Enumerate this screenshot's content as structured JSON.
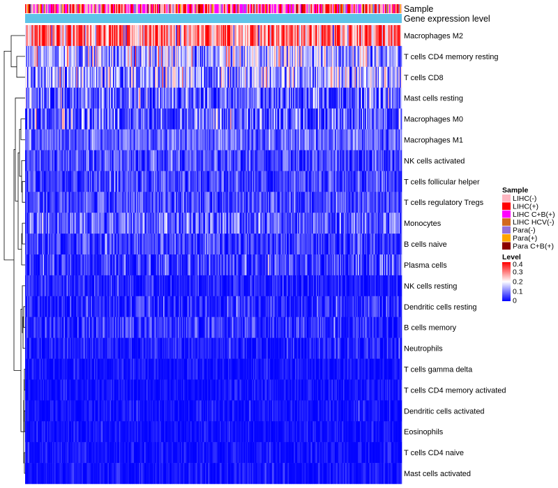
{
  "chart_data": {
    "type": "heatmap",
    "title": "",
    "annotations": [
      {
        "name": "Sample"
      },
      {
        "name": "Gene expression level"
      }
    ],
    "rows": [
      {
        "label": "Macrophages M2",
        "mean": 0.3,
        "sd": 0.09
      },
      {
        "label": "T cells CD4 memory resting",
        "mean": 0.14,
        "sd": 0.08
      },
      {
        "label": "T cells CD8",
        "mean": 0.13,
        "sd": 0.09
      },
      {
        "label": "Mast cells resting",
        "mean": 0.07,
        "sd": 0.07
      },
      {
        "label": "Macrophages M0",
        "mean": 0.06,
        "sd": 0.08
      },
      {
        "label": "Macrophages M1",
        "mean": 0.08,
        "sd": 0.04
      },
      {
        "label": "NK cells activated",
        "mean": 0.05,
        "sd": 0.04
      },
      {
        "label": "T cells follicular helper",
        "mean": 0.05,
        "sd": 0.04
      },
      {
        "label": "T cells regulatory  Tregs",
        "mean": 0.05,
        "sd": 0.04
      },
      {
        "label": "Monocytes",
        "mean": 0.07,
        "sd": 0.05
      },
      {
        "label": "B cells naive",
        "mean": 0.04,
        "sd": 0.04
      },
      {
        "label": "Plasma cells",
        "mean": 0.04,
        "sd": 0.05
      },
      {
        "label": "NK cells resting",
        "mean": 0.02,
        "sd": 0.03
      },
      {
        "label": "Dendritic cells resting",
        "mean": 0.03,
        "sd": 0.04
      },
      {
        "label": "B cells memory",
        "mean": 0.03,
        "sd": 0.04
      },
      {
        "label": "Neutrophils",
        "mean": 0.02,
        "sd": 0.03
      },
      {
        "label": "T cells gamma delta",
        "mean": 0.01,
        "sd": 0.02
      },
      {
        "label": "T cells CD4 memory activated",
        "mean": 0.01,
        "sd": 0.02
      },
      {
        "label": "Dendritic cells activated",
        "mean": 0.01,
        "sd": 0.02
      },
      {
        "label": "Eosinophils",
        "mean": 0.01,
        "sd": 0.02
      },
      {
        "label": "T cells CD4 naive",
        "mean": 0.01,
        "sd": 0.02
      },
      {
        "label": "Mast cells activated",
        "mean": 0.01,
        "sd": 0.02
      }
    ],
    "n_samples": 360,
    "sample_groups": {
      "title": "Sample",
      "entries": [
        {
          "label": "LIHC(-)",
          "color": "#FFB6C1"
        },
        {
          "label": "LIHC(+)",
          "color": "#FF0000"
        },
        {
          "label": "LIHC C+B(+)",
          "color": "#FF00FF"
        },
        {
          "label": "LIHC HCV(-)",
          "color": "#D2691E"
        },
        {
          "label": "Para(-)",
          "color": "#9370DB"
        },
        {
          "label": "Para(+)",
          "color": "#FFA500"
        },
        {
          "label": "Para C+B(+)",
          "color": "#8B0000"
        }
      ],
      "weights": [
        0.42,
        0.22,
        0.22,
        0.03,
        0.06,
        0.03,
        0.02
      ]
    },
    "expression_annotation_color": "#5EC3E8",
    "level_legend": {
      "title": "Level",
      "ticks": [
        "0.4",
        "0.3",
        "0.2",
        "0.1",
        "0"
      ],
      "tick_values": [
        0.4,
        0.3,
        0.2,
        0.1,
        0
      ],
      "range": [
        0,
        0.4
      ],
      "colors": [
        "#0000FF",
        "#FFFFFF",
        "#FF0000"
      ]
    }
  }
}
